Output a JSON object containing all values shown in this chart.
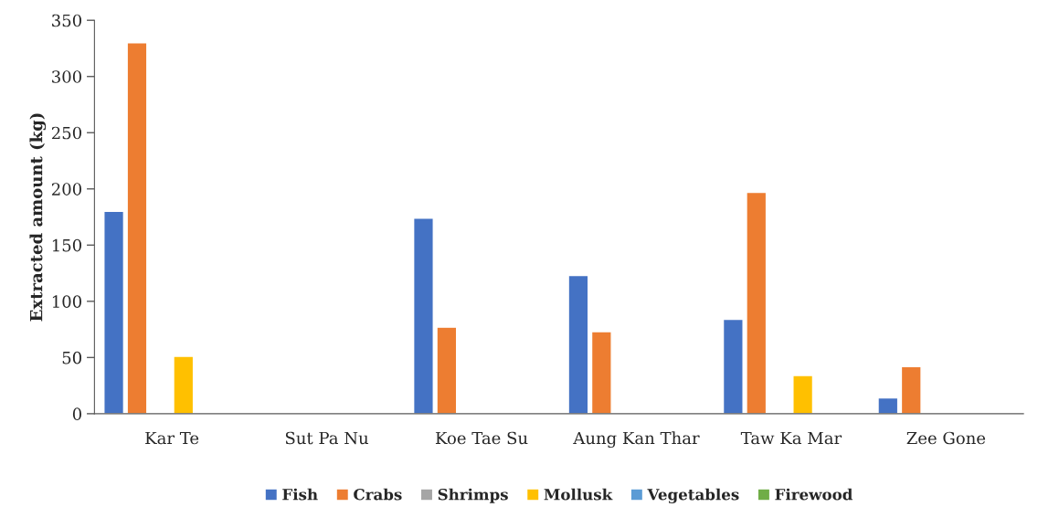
{
  "chart_data": {
    "type": "bar",
    "ylabel": "Extracted amount (kg)",
    "categories": [
      "Kar Te",
      "Sut Pa Nu",
      "Koe Tae Su",
      "Aung Kan Thar",
      "Taw Ka Mar",
      "Zee Gone"
    ],
    "series": [
      {
        "name": "Fish",
        "color": "#4472c4",
        "values": [
          180,
          0,
          174,
          123,
          84,
          14
        ]
      },
      {
        "name": "Crabs",
        "color": "#ed7d31",
        "values": [
          330,
          0,
          77,
          73,
          197,
          42
        ]
      },
      {
        "name": "Shrimps",
        "color": "#a5a5a5",
        "values": [
          0,
          0,
          0,
          0,
          0,
          0
        ]
      },
      {
        "name": "Mollusk",
        "color": "#ffc000",
        "values": [
          51,
          0,
          0,
          0,
          34,
          0
        ]
      },
      {
        "name": "Vegetables",
        "color": "#5b9bd5",
        "values": [
          0,
          0,
          0,
          0,
          0,
          0
        ]
      },
      {
        "name": "Firewood",
        "color": "#70ad47",
        "values": [
          0,
          0,
          0,
          0,
          0,
          0
        ]
      }
    ],
    "ylim": [
      0,
      350
    ],
    "yticks": [
      0,
      50,
      100,
      150,
      200,
      250,
      300,
      350
    ],
    "grid": false,
    "legend": "bottom"
  }
}
